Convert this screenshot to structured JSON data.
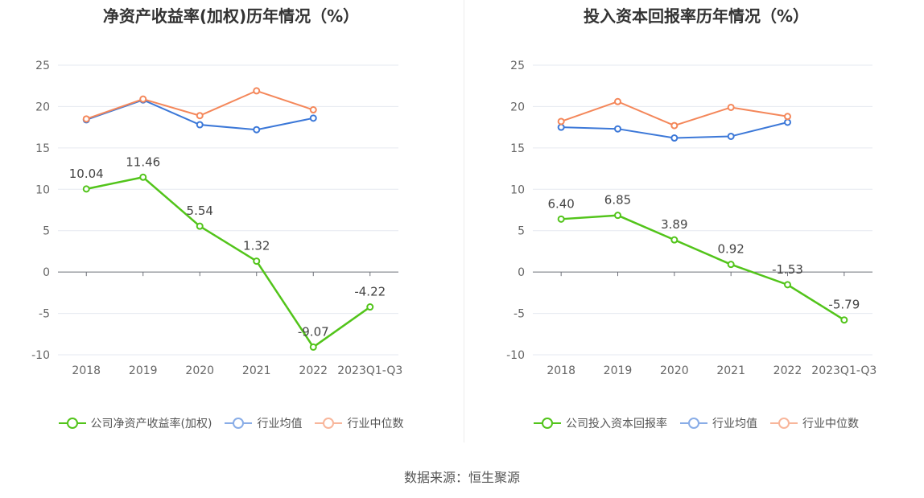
{
  "source": "数据来源：恒生聚源",
  "chart_data": [
    {
      "type": "line",
      "title": "净资产收益率(加权)历年情况（%）",
      "categories": [
        "2018",
        "2019",
        "2020",
        "2021",
        "2022",
        "2023Q1-Q3"
      ],
      "ylim": [
        -10,
        25
      ],
      "yticks": [
        25,
        20,
        15,
        10,
        5,
        0,
        -5,
        -10
      ],
      "grid": true,
      "legend_position": "bottom",
      "series": [
        {
          "name": "公司净资产收益率(加权)",
          "color": "#52c41a",
          "values": [
            10.04,
            11.46,
            5.54,
            1.32,
            -9.07,
            -4.22
          ],
          "labels": [
            "10.04",
            "11.46",
            "5.54",
            "1.32",
            "-9.07",
            "-4.22"
          ]
        },
        {
          "name": "行业均值",
          "color": "#3c78d8",
          "values": [
            18.4,
            20.8,
            17.8,
            17.2,
            18.6,
            null
          ]
        },
        {
          "name": "行业中位数",
          "color": "#f4875a",
          "values": [
            18.5,
            20.9,
            18.9,
            21.9,
            19.6,
            null
          ]
        }
      ]
    },
    {
      "type": "line",
      "title": "投入资本回报率历年情况（%）",
      "categories": [
        "2018",
        "2019",
        "2020",
        "2021",
        "2022",
        "2023Q1-Q3"
      ],
      "ylim": [
        -10,
        25
      ],
      "yticks": [
        25,
        20,
        15,
        10,
        5,
        0,
        -5,
        -10
      ],
      "grid": true,
      "legend_position": "bottom",
      "series": [
        {
          "name": "公司投入资本回报率",
          "color": "#52c41a",
          "values": [
            6.4,
            6.85,
            3.89,
            0.92,
            -1.53,
            -5.79
          ],
          "labels": [
            "6.40",
            "6.85",
            "3.89",
            "0.92",
            "-1.53",
            "-5.79"
          ]
        },
        {
          "name": "行业均值",
          "color": "#3c78d8",
          "values": [
            17.5,
            17.3,
            16.2,
            16.4,
            18.1,
            null
          ]
        },
        {
          "name": "行业中位数",
          "color": "#f4875a",
          "values": [
            18.2,
            20.6,
            17.7,
            19.9,
            18.8,
            null
          ]
        }
      ]
    }
  ]
}
